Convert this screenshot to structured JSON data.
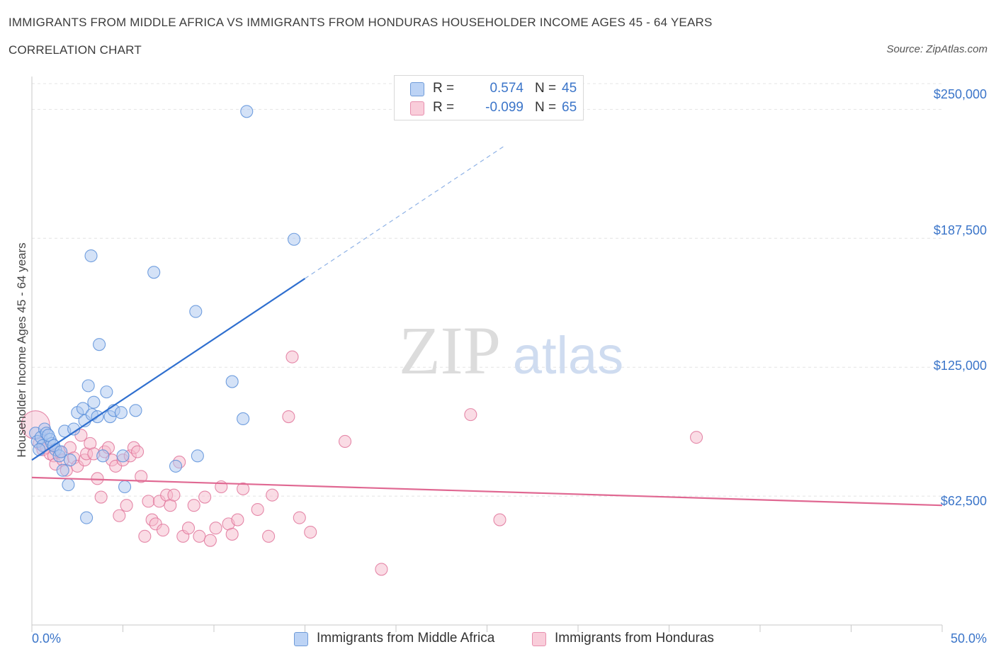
{
  "header": {
    "title": "IMMIGRANTS FROM MIDDLE AFRICA VS IMMIGRANTS FROM HONDURAS HOUSEHOLDER INCOME AGES 45 - 64 YEARS",
    "subtitle": "CORRELATION CHART",
    "source": "Source: ZipAtlas.com"
  },
  "watermark": {
    "zip": "ZIP",
    "atlas": "atlas"
  },
  "legend": {
    "rows": [
      {
        "r_label": "R =",
        "r_value": "0.574",
        "n_label": "N =",
        "n_value": "45",
        "color": "#a9c6f0"
      },
      {
        "r_label": "R =",
        "r_value": "-0.099",
        "n_label": "N =",
        "n_value": "65",
        "color": "#f5b9cc"
      }
    ]
  },
  "chart_data": {
    "type": "scatter",
    "title": "IMMIGRANTS FROM MIDDLE AFRICA VS IMMIGRANTS FROM HONDURAS HOUSEHOLDER INCOME AGES 45 - 64 YEARS",
    "subtitle": "CORRELATION CHART",
    "xlabel": "",
    "ylabel": "Householder Income Ages 45 - 64 years",
    "xlim": [
      0,
      50
    ],
    "ylim": [
      0,
      262500
    ],
    "x_tick_labels": [
      "0.0%",
      "50.0%"
    ],
    "y_ticks": [
      62500,
      125000,
      187500,
      250000
    ],
    "y_tick_labels": [
      "$62,500",
      "$125,000",
      "$187,500",
      "$250,000"
    ],
    "grid": true,
    "series": [
      {
        "name": "Immigrants from Middle Africa",
        "color": "#5b8fd9",
        "fill": "#a9c6f0",
        "r": 0.574,
        "n": 45,
        "trend": {
          "x0": 0.0,
          "y0": 80000,
          "x1": 15.0,
          "y1": 168000,
          "dashed_to_x": 26.0
        },
        "points": [
          [
            0.2,
            93000
          ],
          [
            0.3,
            89000
          ],
          [
            0.5,
            91000
          ],
          [
            0.6,
            87000
          ],
          [
            0.7,
            95000
          ],
          [
            0.8,
            93000
          ],
          [
            1.0,
            90000
          ],
          [
            1.1,
            88000
          ],
          [
            1.3,
            85000
          ],
          [
            1.5,
            82000
          ],
          [
            1.7,
            75000
          ],
          [
            1.8,
            94000
          ],
          [
            2.0,
            68000
          ],
          [
            2.1,
            80000
          ],
          [
            2.3,
            95000
          ],
          [
            2.5,
            103000
          ],
          [
            2.8,
            105000
          ],
          [
            2.9,
            99000
          ],
          [
            3.0,
            52000
          ],
          [
            3.1,
            116000
          ],
          [
            3.3,
            102000
          ],
          [
            3.4,
            108000
          ],
          [
            3.6,
            101000
          ],
          [
            3.7,
            136000
          ],
          [
            3.9,
            82000
          ],
          [
            4.1,
            113000
          ],
          [
            4.3,
            101000
          ],
          [
            4.5,
            104000
          ],
          [
            4.9,
            103000
          ],
          [
            5.0,
            82000
          ],
          [
            5.1,
            67000
          ],
          [
            5.7,
            104000
          ],
          [
            6.7,
            171000
          ],
          [
            7.9,
            77000
          ],
          [
            9.0,
            152000
          ],
          [
            9.1,
            82000
          ],
          [
            11.0,
            118000
          ],
          [
            11.6,
            100000
          ],
          [
            11.8,
            249000
          ],
          [
            14.4,
            187000
          ],
          [
            0.4,
            85000
          ],
          [
            0.9,
            92000
          ],
          [
            1.2,
            87000
          ],
          [
            3.25,
            179000
          ],
          [
            1.6,
            84000
          ]
        ]
      },
      {
        "name": "Immigrants from Honduras",
        "color": "#e0759b",
        "fill": "#f5b9cc",
        "r": -0.099,
        "n": 65,
        "trend": {
          "x0": 0.0,
          "y0": 71500,
          "x1": 50.0,
          "y1": 58000
        },
        "points": [
          [
            0.2,
            97000
          ],
          [
            0.4,
            88000
          ],
          [
            0.6,
            85000
          ],
          [
            0.8,
            86000
          ],
          [
            1.0,
            83000
          ],
          [
            1.2,
            82000
          ],
          [
            1.3,
            78000
          ],
          [
            1.5,
            84000
          ],
          [
            1.7,
            80000
          ],
          [
            1.9,
            75000
          ],
          [
            2.1,
            86000
          ],
          [
            2.3,
            81000
          ],
          [
            2.5,
            77000
          ],
          [
            2.7,
            92000
          ],
          [
            2.9,
            80000
          ],
          [
            3.0,
            83000
          ],
          [
            3.2,
            88000
          ],
          [
            3.4,
            83000
          ],
          [
            3.6,
            71000
          ],
          [
            3.8,
            62000
          ],
          [
            4.0,
            84000
          ],
          [
            4.2,
            86000
          ],
          [
            4.4,
            80000
          ],
          [
            4.6,
            77000
          ],
          [
            4.8,
            53000
          ],
          [
            5.0,
            80000
          ],
          [
            5.2,
            58000
          ],
          [
            5.4,
            82000
          ],
          [
            5.6,
            86000
          ],
          [
            5.8,
            84000
          ],
          [
            6.0,
            72000
          ],
          [
            6.2,
            43000
          ],
          [
            6.4,
            60000
          ],
          [
            6.6,
            51000
          ],
          [
            6.8,
            49000
          ],
          [
            7.0,
            60000
          ],
          [
            7.2,
            46000
          ],
          [
            7.4,
            63000
          ],
          [
            7.6,
            58000
          ],
          [
            7.8,
            63000
          ],
          [
            8.1,
            79000
          ],
          [
            8.3,
            43000
          ],
          [
            8.6,
            47000
          ],
          [
            8.9,
            58000
          ],
          [
            9.2,
            43000
          ],
          [
            9.5,
            62000
          ],
          [
            9.8,
            41000
          ],
          [
            10.1,
            47000
          ],
          [
            10.4,
            67000
          ],
          [
            10.8,
            49000
          ],
          [
            11.0,
            44000
          ],
          [
            11.3,
            51000
          ],
          [
            11.6,
            66000
          ],
          [
            12.4,
            56000
          ],
          [
            13.0,
            43000
          ],
          [
            13.2,
            63000
          ],
          [
            14.1,
            101000
          ],
          [
            14.3,
            130000
          ],
          [
            14.7,
            52000
          ],
          [
            15.3,
            45000
          ],
          [
            17.2,
            89000
          ],
          [
            19.2,
            27000
          ],
          [
            24.1,
            102000
          ],
          [
            25.7,
            51000
          ],
          [
            36.5,
            91000
          ]
        ]
      }
    ]
  }
}
